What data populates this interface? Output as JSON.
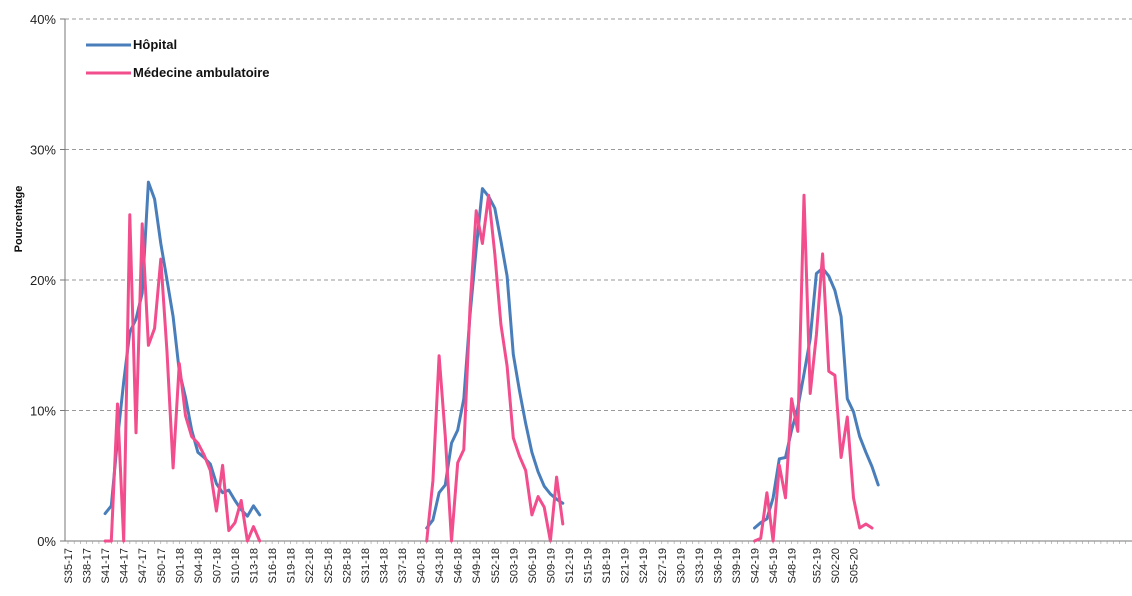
{
  "chart_data": {
    "type": "line",
    "title": "",
    "xlabel": "",
    "ylabel": "Pourcentage",
    "ylim": [
      0,
      40
    ],
    "yticks": [
      "0%",
      "10%",
      "20%",
      "30%",
      "40%"
    ],
    "grid": "horizontal dashed",
    "legend_position": "top-left",
    "x_tick_labels": [
      "S35-17",
      "S38-17",
      "S41-17",
      "S44-17",
      "S47-17",
      "S50-17",
      "S01-18",
      "S04-18",
      "S07-18",
      "S10-18",
      "S13-18",
      "S16-18",
      "S19-18",
      "S22-18",
      "S25-18",
      "S28-18",
      "S31-18",
      "S34-18",
      "S37-18",
      "S40-18",
      "S43-18",
      "S46-18",
      "S49-18",
      "S52-18",
      "S03-19",
      "S06-19",
      "S09-19",
      "S12-19",
      "S15-19",
      "S18-19",
      "S21-19",
      "S24-19",
      "S27-19",
      "S30-19",
      "S33-19",
      "S36-19",
      "S39-19",
      "S42-19",
      "S45-19",
      "S48-19",
      "S52-19",
      "S02-20",
      "S05-20"
    ],
    "series": [
      {
        "name": "Hôpital",
        "color": "#4a7ebb",
        "segments": [
          {
            "start_week_index": 6,
            "values": [
              2.1,
              2.7,
              7.8,
              12.2,
              16.0,
              17.0,
              19.0,
              27.5,
              26.2,
              22.8,
              20.0,
              17.2,
              13.0,
              11.0,
              8.5,
              6.8,
              6.4,
              5.9,
              4.4,
              3.7,
              3.9,
              3.1,
              2.4,
              1.9,
              2.7,
              2.0
            ]
          },
          {
            "start_week_index": 58,
            "values": [
              1.0,
              1.6,
              3.7,
              4.3,
              7.5,
              8.5,
              10.9,
              17.3,
              22.4,
              27.0,
              26.4,
              25.5,
              23.0,
              20.3,
              14.3,
              11.5,
              9.0,
              6.8,
              5.3,
              4.2,
              3.6,
              3.2,
              2.9
            ]
          },
          {
            "start_week_index": 111,
            "values": [
              1.0,
              1.4,
              1.7,
              3.3,
              6.3,
              6.4,
              8.5,
              10.2,
              12.8,
              15.5,
              20.5,
              20.9,
              20.3,
              19.2,
              17.2,
              10.9,
              9.9,
              8.0,
              6.8,
              5.7,
              4.3
            ]
          }
        ]
      },
      {
        "name": "Médecine ambulatoire",
        "color": "#f24d8c",
        "segments": [
          {
            "start_week_index": 6,
            "values": [
              0.0,
              0.0,
              10.5,
              0.0,
              25.0,
              8.3,
              24.3,
              15.0,
              16.3,
              21.6,
              14.5,
              5.6,
              13.6,
              9.6,
              8.0,
              7.5,
              6.6,
              5.4,
              2.3,
              5.8,
              0.8,
              1.4,
              3.1,
              0.0,
              1.1,
              0.0
            ]
          },
          {
            "start_week_index": 58,
            "values": [
              0.0,
              4.6,
              14.2,
              8.0,
              0.0,
              6.0,
              7.0,
              17.9,
              25.3,
              22.8,
              26.5,
              22.0,
              16.6,
              13.4,
              7.9,
              6.5,
              5.4,
              2.0,
              3.4,
              2.6,
              0.0,
              4.9,
              1.3
            ]
          },
          {
            "start_week_index": 111,
            "values": [
              0.0,
              0.2,
              3.7,
              0.0,
              5.8,
              3.3,
              10.9,
              8.4,
              26.5,
              11.3,
              15.8,
              22.0,
              13.0,
              12.7,
              6.4,
              9.5,
              3.3,
              1.0,
              1.3,
              1.0
            ]
          }
        ]
      }
    ]
  }
}
